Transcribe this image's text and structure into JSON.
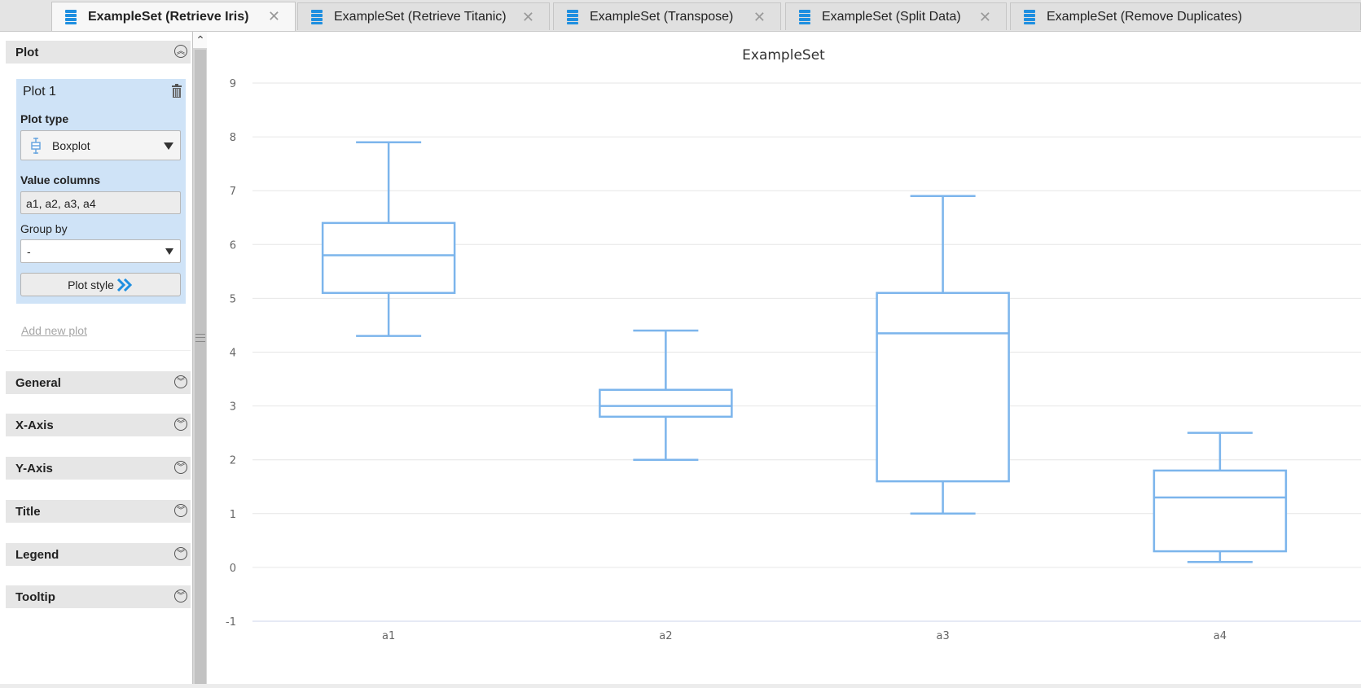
{
  "tabs": [
    {
      "label": "ExampleSet (Retrieve Iris)",
      "active": true
    },
    {
      "label": "ExampleSet (Retrieve Titanic)",
      "active": false
    },
    {
      "label": "ExampleSet (Transpose)",
      "active": false
    },
    {
      "label": "ExampleSet (Split Data)",
      "active": false
    },
    {
      "label": "ExampleSet (Remove Duplicates)",
      "active": false
    }
  ],
  "tab_close_glyph": "✕",
  "panel": {
    "plot_section": "Plot",
    "plot_title": "Plot 1",
    "plot_type_label": "Plot type",
    "plot_type_value": "Boxplot",
    "value_columns_label": "Value columns",
    "value_columns_value": "a1, a2, a3, a4",
    "group_by_label": "Group by",
    "group_by_value": "-",
    "plot_style_button": "Plot style",
    "add_new_plot": "Add new plot",
    "sections": [
      "General",
      "X-Axis",
      "Y-Axis",
      "Title",
      "Legend",
      "Tooltip"
    ]
  },
  "colors": {
    "accent": "#7cb5ec",
    "tab_icon": "#1f8fe0",
    "plot_panel": "#cfe3f7"
  },
  "chart_data": {
    "type": "boxplot",
    "title": "ExampleSet",
    "categories": [
      "a1",
      "a2",
      "a3",
      "a4"
    ],
    "boxes": [
      {
        "min": 4.3,
        "q1": 5.1,
        "median": 5.8,
        "q3": 6.4,
        "max": 7.9
      },
      {
        "min": 2.0,
        "q1": 2.8,
        "median": 3.0,
        "q3": 3.3,
        "max": 4.4
      },
      {
        "min": 1.0,
        "q1": 1.6,
        "median": 4.35,
        "q3": 5.1,
        "max": 6.9
      },
      {
        "min": 0.1,
        "q1": 0.3,
        "median": 1.3,
        "q3": 1.8,
        "max": 2.5
      }
    ],
    "yticks": [
      -1,
      0,
      1,
      2,
      3,
      4,
      5,
      6,
      7,
      8,
      9
    ],
    "ylim": [
      -1,
      9
    ],
    "grid": true
  }
}
